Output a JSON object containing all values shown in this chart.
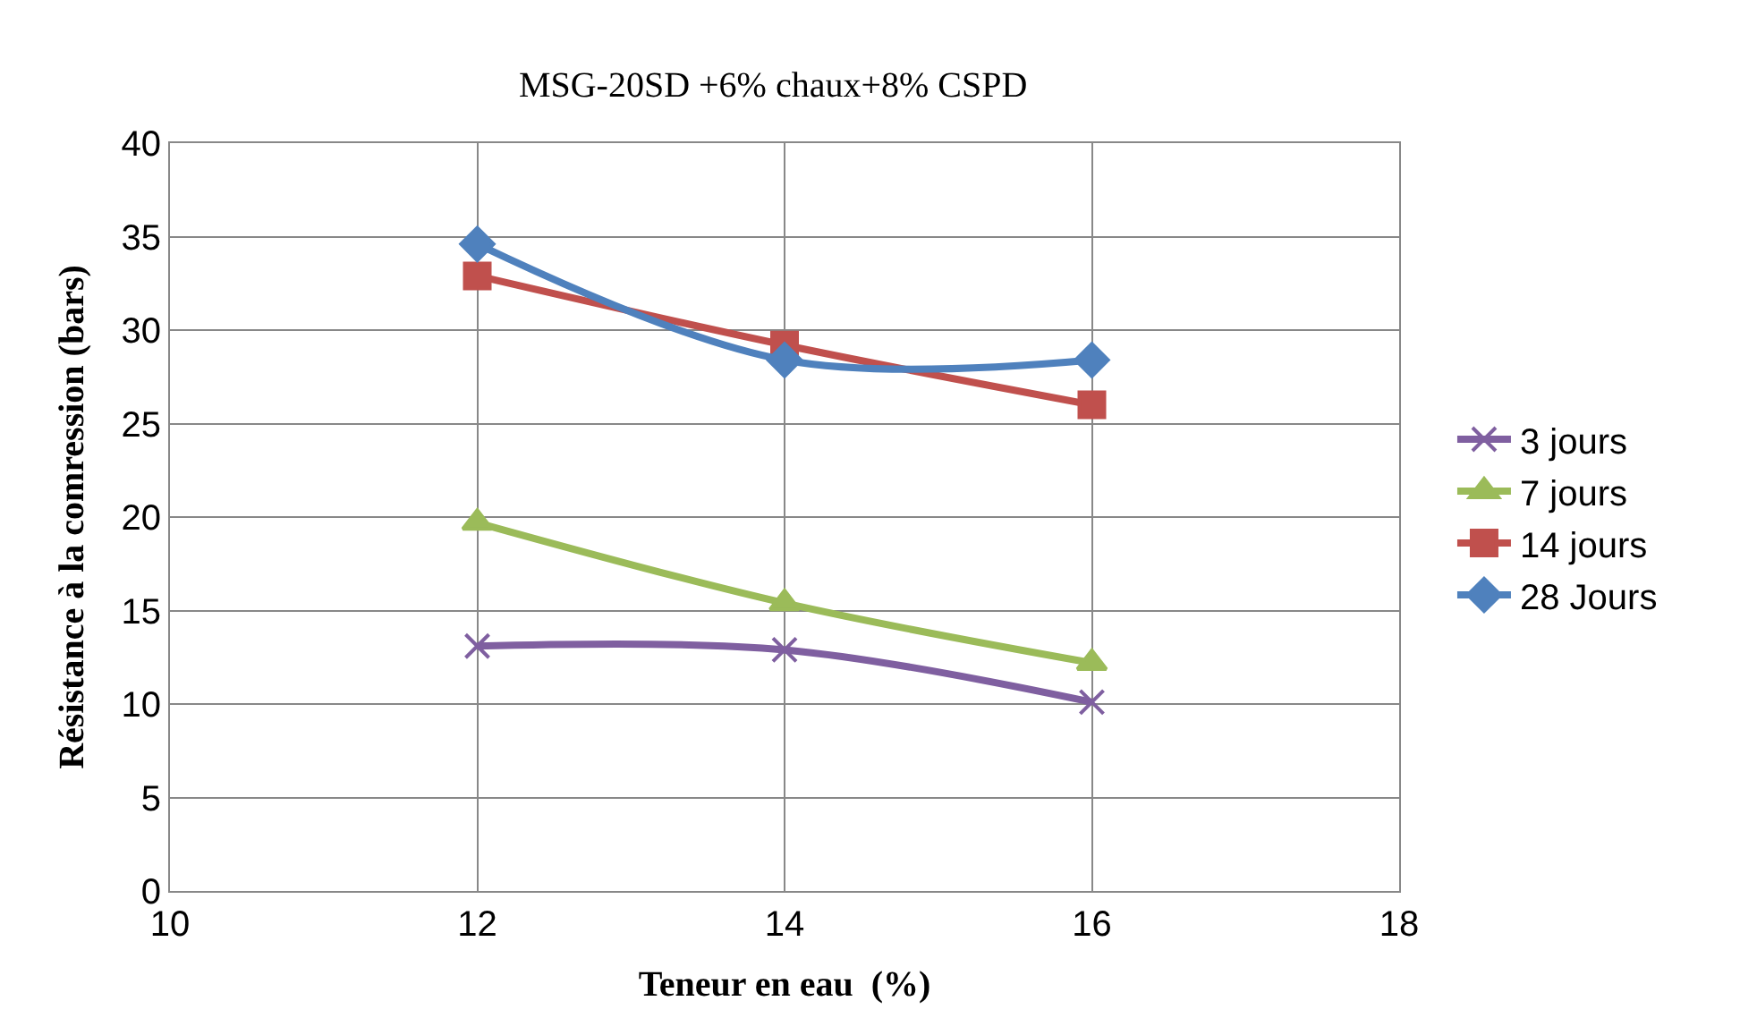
{
  "chart_data": {
    "type": "line",
    "title": "MSG-20SD +6% chaux+8% CSPD",
    "xlabel": "Teneur en eau  (%)",
    "ylabel": "Résistance à la comression (bars)",
    "x": [
      12,
      14,
      16
    ],
    "xlim": [
      10,
      18
    ],
    "xticks": [
      10,
      12,
      14,
      16,
      18
    ],
    "ylim": [
      0,
      40
    ],
    "yticks": [
      0,
      5,
      10,
      15,
      20,
      25,
      30,
      35,
      40
    ],
    "grid": true,
    "legend": "right",
    "series": [
      {
        "name": "3 jours",
        "color": "#7f5fa0",
        "marker": "cross",
        "values": [
          13.1,
          12.9,
          10.1
        ]
      },
      {
        "name": "7 jours",
        "color": "#9bbb59",
        "marker": "triangle",
        "values": [
          19.7,
          15.4,
          12.2
        ]
      },
      {
        "name": "14 jours",
        "color": "#c0504d",
        "marker": "square",
        "values": [
          32.9,
          29.2,
          26.0
        ]
      },
      {
        "name": "28 Jours",
        "color": "#4f81bd",
        "marker": "diamond",
        "values": [
          34.6,
          28.4,
          28.4
        ]
      }
    ]
  }
}
